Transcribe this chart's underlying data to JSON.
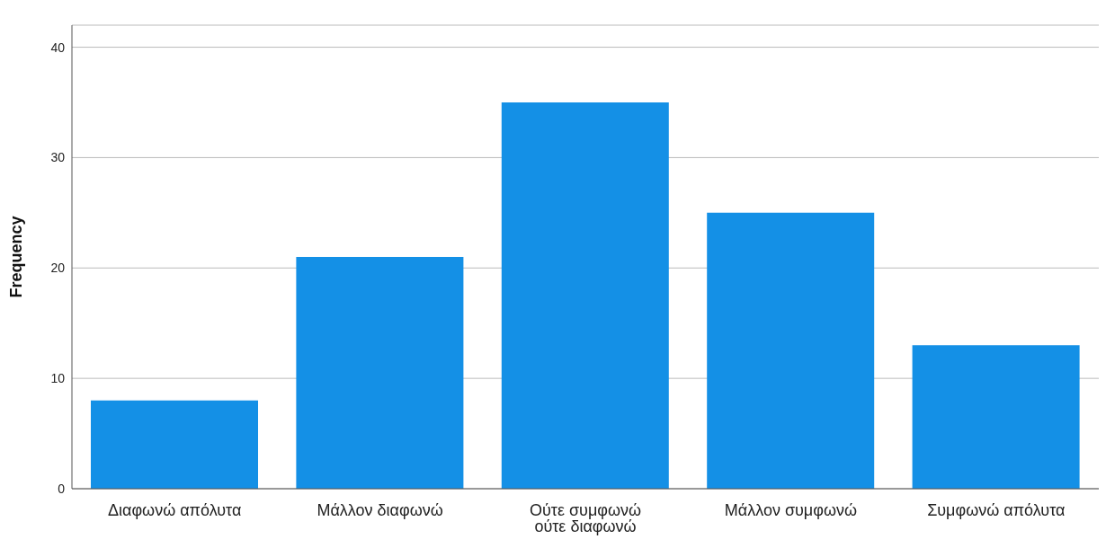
{
  "chart_data": {
    "type": "bar",
    "ylabel": "Frequency",
    "categories": [
      "Διαφωνώ απόλυτα",
      "Μάλλον διαφωνώ",
      "Ούτε συμφωνώ ούτε διαφωνώ",
      "Μάλλον συμφωνώ",
      "Συμφωνώ απόλυτα"
    ],
    "values": [
      8,
      21,
      35,
      25,
      13
    ],
    "color": "#1490e6",
    "ylim": [
      0,
      42
    ],
    "yticks": [
      0,
      10,
      20,
      30,
      40
    ],
    "grid": "y"
  }
}
